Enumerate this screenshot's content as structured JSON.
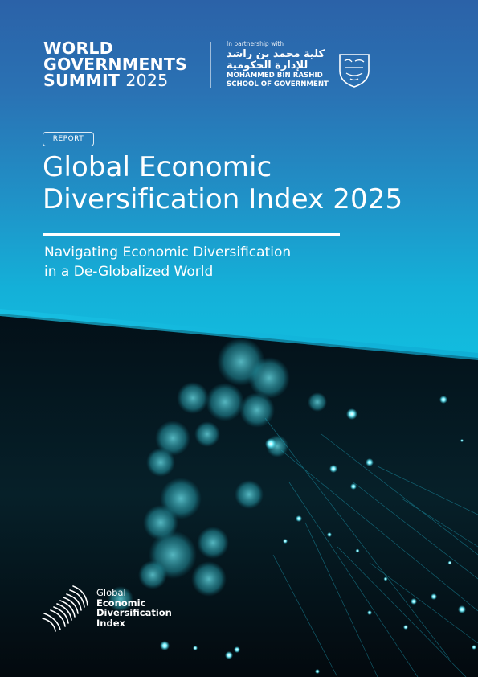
{
  "header": {
    "wgs_line1": "WORLD",
    "wgs_line2": "GOVERNMENTS",
    "wgs_line3": "SUMMIT",
    "wgs_year": "2025",
    "partner_label": "In partnership with",
    "arabic_line1": "كلية محمد بن راشد",
    "arabic_line2": "للإدارة الحكومية",
    "school_line1": "MOHAMMED BIN RASHID",
    "school_line2": "SCHOOL OF GOVERNMENT"
  },
  "badge": "REPORT",
  "title_line1": "Global Economic",
  "title_line2": "Diversification Index 2025",
  "subtitle_line1": "Navigating Economic Diversification",
  "subtitle_line2": "in a De-Globalized World",
  "index_logo": {
    "line1": "Global",
    "line2": "Economic",
    "line3": "Diversification",
    "line4": "Index"
  },
  "colors": {
    "top_blue": "#2b62a8",
    "cyan": "#12bfe0",
    "photo_dark": "#041018"
  }
}
